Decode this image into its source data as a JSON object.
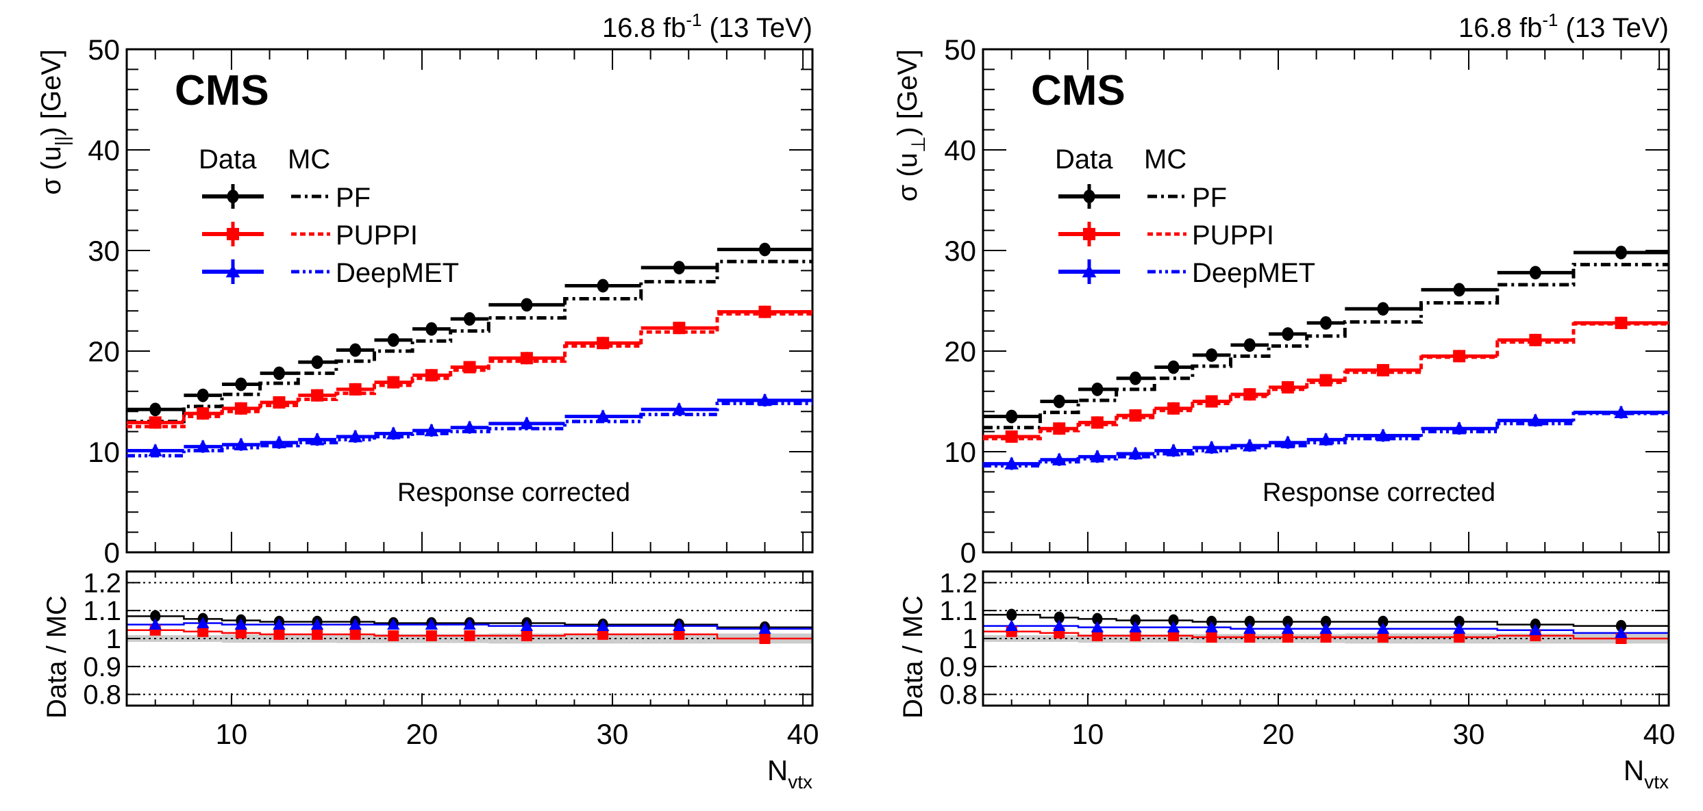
{
  "figure": {
    "cms_label": "CMS",
    "lumi_label": "16.8 fb",
    "lumi_sup": "-1",
    "lumi_suffix": " (13 TeV)",
    "annotation": "Response corrected",
    "legend": {
      "header_data": "Data",
      "header_mc": "MC",
      "entries": [
        {
          "name": "PF",
          "color": "#000000",
          "marker": "circle"
        },
        {
          "name": "PUPPI",
          "color": "#ff0000",
          "marker": "square"
        },
        {
          "name": "DeepMET",
          "color": "#0000ff",
          "marker": "triangle"
        }
      ]
    },
    "xlabel_main": "N",
    "xlabel_sub": "vtx",
    "ratio_ylabel": "Data  / MC"
  },
  "chart_data": [
    {
      "type": "line",
      "title": "",
      "ylabel_prefix": "σ (u",
      "ylabel_sub": "||",
      "ylabel_suffix": ") [GeV]",
      "xlabel": "N_vtx",
      "xlim": [
        4.5,
        40.5
      ],
      "ylim": [
        0,
        50
      ],
      "x_ticks": [
        10,
        20,
        30,
        40
      ],
      "y_ticks": [
        0,
        10,
        20,
        30,
        40,
        50
      ],
      "bin_edges": [
        4.5,
        7.5,
        9.5,
        11.5,
        13.5,
        15.5,
        17.5,
        19.5,
        21.5,
        23.5,
        27.5,
        31.5,
        35.5,
        40.5
      ],
      "x_points": [
        6,
        8.5,
        10.5,
        12.5,
        14.5,
        16.5,
        18.5,
        20.5,
        22.5,
        25.5,
        29.5,
        33.5,
        38
      ],
      "series": [
        {
          "name": "PF Data",
          "algo": "PF",
          "kind": "data",
          "values": [
            14.2,
            15.6,
            16.7,
            17.8,
            18.9,
            20.1,
            21.1,
            22.2,
            23.2,
            24.6,
            26.5,
            28.3,
            30.1
          ]
        },
        {
          "name": "PF MC",
          "algo": "PF",
          "kind": "mc",
          "values": [
            13.0,
            14.5,
            15.7,
            16.8,
            17.8,
            19.0,
            20.0,
            21.0,
            22.0,
            23.3,
            25.2,
            26.9,
            28.9
          ]
        },
        {
          "name": "PUPPI Data",
          "algo": "PUPPI",
          "kind": "data",
          "values": [
            12.9,
            13.8,
            14.3,
            14.9,
            15.6,
            16.2,
            16.9,
            17.6,
            18.4,
            19.3,
            20.8,
            22.3,
            23.9
          ]
        },
        {
          "name": "PUPPI MC",
          "algo": "PUPPI",
          "kind": "mc",
          "values": [
            12.5,
            13.5,
            14.0,
            14.6,
            15.2,
            15.8,
            16.6,
            17.3,
            18.1,
            19.0,
            20.5,
            21.9,
            23.7
          ]
        },
        {
          "name": "DeepMET Data",
          "algo": "DeepMET",
          "kind": "data",
          "values": [
            10.1,
            10.5,
            10.7,
            10.9,
            11.2,
            11.5,
            11.8,
            12.1,
            12.4,
            12.8,
            13.5,
            14.2,
            15.1
          ]
        },
        {
          "name": "DeepMET MC",
          "algo": "DeepMET",
          "kind": "mc",
          "values": [
            9.6,
            10.1,
            10.4,
            10.6,
            10.9,
            11.2,
            11.5,
            11.8,
            12.0,
            12.3,
            13.0,
            13.7,
            14.8
          ]
        }
      ],
      "ratio": {
        "ylim": [
          0.76,
          1.24
        ],
        "y_ticks": [
          0.8,
          0.9,
          1.0,
          1.1,
          1.2
        ],
        "y_tick_labels": [
          "0.8",
          "0.9",
          "1",
          "1.1",
          "1.2"
        ],
        "grid": "dotted",
        "band_halfwidth": [
          0.012,
          0.012,
          0.015,
          0.015,
          0.015,
          0.016,
          0.016,
          0.016,
          0.016,
          0.018,
          0.018,
          0.018,
          0.018
        ],
        "series": [
          {
            "name": "PF",
            "values": [
              1.08,
              1.07,
              1.065,
              1.06,
              1.06,
              1.06,
              1.055,
              1.055,
              1.055,
              1.055,
              1.05,
              1.05,
              1.04
            ]
          },
          {
            "name": "PUPPI",
            "values": [
              1.03,
              1.025,
              1.02,
              1.015,
              1.015,
              1.015,
              1.01,
              1.01,
              1.01,
              1.01,
              1.015,
              1.015,
              1.0
            ]
          },
          {
            "name": "DeepMET",
            "values": [
              1.05,
              1.055,
              1.05,
              1.05,
              1.05,
              1.05,
              1.05,
              1.05,
              1.05,
              1.045,
              1.045,
              1.045,
              1.035
            ]
          }
        ]
      }
    },
    {
      "type": "line",
      "title": "",
      "ylabel_prefix": "σ (u",
      "ylabel_sub": "⊥",
      "ylabel_suffix": ") [GeV]",
      "xlabel": "N_vtx",
      "xlim": [
        4.5,
        40.5
      ],
      "ylim": [
        0,
        50
      ],
      "x_ticks": [
        10,
        20,
        30,
        40
      ],
      "y_ticks": [
        0,
        10,
        20,
        30,
        40,
        50
      ],
      "bin_edges": [
        4.5,
        7.5,
        9.5,
        11.5,
        13.5,
        15.5,
        17.5,
        19.5,
        21.5,
        23.5,
        27.5,
        31.5,
        35.5,
        40.5
      ],
      "x_points": [
        6,
        8.5,
        10.5,
        12.5,
        14.5,
        16.5,
        18.5,
        20.5,
        22.5,
        25.5,
        29.5,
        33.5,
        38
      ],
      "series": [
        {
          "name": "PF Data",
          "algo": "PF",
          "kind": "data",
          "values": [
            13.5,
            15.0,
            16.2,
            17.3,
            18.4,
            19.6,
            20.6,
            21.7,
            22.8,
            24.2,
            26.1,
            27.8,
            29.8
          ]
        },
        {
          "name": "PF MC",
          "algo": "PF",
          "kind": "mc",
          "values": [
            12.4,
            13.9,
            15.1,
            16.2,
            17.3,
            18.5,
            19.5,
            20.5,
            21.5,
            22.9,
            24.8,
            26.6,
            28.6
          ]
        },
        {
          "name": "PUPPI Data",
          "algo": "PUPPI",
          "kind": "data",
          "values": [
            11.5,
            12.3,
            12.9,
            13.6,
            14.3,
            15.0,
            15.7,
            16.4,
            17.1,
            18.1,
            19.5,
            21.1,
            22.8
          ]
        },
        {
          "name": "PUPPI MC",
          "algo": "PUPPI",
          "kind": "mc",
          "values": [
            11.3,
            12.1,
            12.7,
            13.4,
            14.1,
            14.8,
            15.5,
            16.2,
            16.9,
            17.9,
            19.4,
            20.9,
            22.7
          ]
        },
        {
          "name": "DeepMET Data",
          "algo": "DeepMET",
          "kind": "data",
          "values": [
            8.8,
            9.2,
            9.5,
            9.8,
            10.1,
            10.4,
            10.6,
            10.9,
            11.2,
            11.6,
            12.3,
            13.1,
            13.9
          ]
        },
        {
          "name": "DeepMET MC",
          "algo": "DeepMET",
          "kind": "mc",
          "values": [
            8.6,
            9.0,
            9.3,
            9.5,
            9.8,
            10.1,
            10.4,
            10.6,
            10.9,
            11.3,
            12.0,
            12.8,
            13.8
          ]
        }
      ],
      "ratio": {
        "ylim": [
          0.76,
          1.24
        ],
        "y_ticks": [
          0.8,
          0.9,
          1.0,
          1.1,
          1.2
        ],
        "y_tick_labels": [
          "0.8",
          "0.9",
          "1",
          "1.1",
          "1.2"
        ],
        "grid": "dotted",
        "band_halfwidth": [
          0.012,
          0.012,
          0.015,
          0.015,
          0.015,
          0.016,
          0.016,
          0.016,
          0.016,
          0.018,
          0.018,
          0.018,
          0.018
        ],
        "series": [
          {
            "name": "PF",
            "values": [
              1.085,
              1.075,
              1.07,
              1.065,
              1.065,
              1.06,
              1.06,
              1.06,
              1.06,
              1.06,
              1.06,
              1.05,
              1.045
            ]
          },
          {
            "name": "PUPPI",
            "values": [
              1.025,
              1.02,
              1.01,
              1.01,
              1.01,
              1.005,
              1.005,
              1.005,
              1.005,
              1.005,
              1.005,
              1.01,
              1.0
            ]
          },
          {
            "name": "DeepMET",
            "values": [
              1.045,
              1.045,
              1.04,
              1.04,
              1.04,
              1.04,
              1.035,
              1.035,
              1.035,
              1.035,
              1.035,
              1.03,
              1.02
            ]
          }
        ]
      }
    }
  ]
}
